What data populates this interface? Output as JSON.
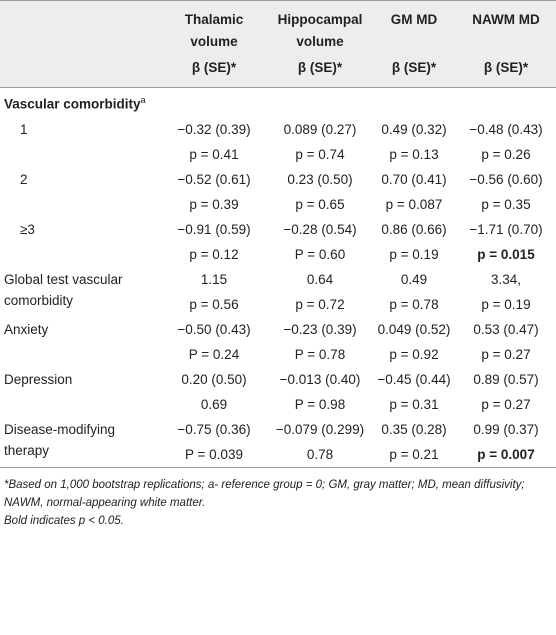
{
  "header": {
    "columns": [
      "Thalamic volume",
      "Hippocampal volume",
      "GM MD",
      "NAWM MD"
    ],
    "subheader": "β (SE)*"
  },
  "table": {
    "rows": [
      {
        "label": "Vascular comorbidity",
        "sup": "a",
        "bold": true,
        "cells": []
      },
      {
        "label": "1",
        "indent": true,
        "cells": [
          {
            "text": "−0.32 (0.39)"
          },
          {
            "text": "0.089 (0.27)"
          },
          {
            "text": "0.49 (0.32)"
          },
          {
            "text": "−0.48 (0.43)"
          }
        ]
      },
      {
        "cells": [
          {
            "text": "p = 0.41"
          },
          {
            "text": "p = 0.74"
          },
          {
            "text": "p = 0.13"
          },
          {
            "text": "p = 0.26"
          }
        ]
      },
      {
        "label": "2",
        "indent": true,
        "cells": [
          {
            "text": "−0.52 (0.61)"
          },
          {
            "text": "0.23 (0.50)"
          },
          {
            "text": "0.70 (0.41)"
          },
          {
            "text": "−0.56 (0.60)"
          }
        ]
      },
      {
        "cells": [
          {
            "text": "p = 0.39"
          },
          {
            "text": "p = 0.65"
          },
          {
            "text": "p = 0.087"
          },
          {
            "text": "p = 0.35"
          }
        ]
      },
      {
        "label": "≥3",
        "indent": true,
        "cells": [
          {
            "text": "−0.91 (0.59)"
          },
          {
            "text": "−0.28 (0.54)"
          },
          {
            "text": "0.86 (0.66)"
          },
          {
            "text": "−1.71 (0.70)"
          }
        ]
      },
      {
        "cells": [
          {
            "text": "p = 0.12"
          },
          {
            "text": "P = 0.60"
          },
          {
            "text": "p = 0.19"
          },
          {
            "text": "p = 0.015",
            "bold": true
          }
        ]
      },
      {
        "label": "Global test vascular comorbidity",
        "cells": [
          {
            "text": "1.15"
          },
          {
            "text": "0.64"
          },
          {
            "text": "0.49"
          },
          {
            "text": "3.34,"
          }
        ]
      },
      {
        "cells": [
          {
            "text": "p = 0.56"
          },
          {
            "text": "p = 0.72"
          },
          {
            "text": "p = 0.78"
          },
          {
            "text": "p = 0.19"
          }
        ]
      },
      {
        "label": "Anxiety",
        "cells": [
          {
            "text": "−0.50 (0.43)"
          },
          {
            "text": "−0.23 (0.39)"
          },
          {
            "text": "0.049 (0.52)"
          },
          {
            "text": "0.53 (0.47)"
          }
        ]
      },
      {
        "cells": [
          {
            "text": "P = 0.24"
          },
          {
            "text": "P = 0.78"
          },
          {
            "text": "p = 0.92"
          },
          {
            "text": "p = 0.27"
          }
        ]
      },
      {
        "label": "Depression",
        "cells": [
          {
            "text": "0.20 (0.50)"
          },
          {
            "text": "−0.013 (0.40)"
          },
          {
            "text": "−0.45 (0.44)"
          },
          {
            "text": "0.89 (0.57)"
          }
        ]
      },
      {
        "cells": [
          {
            "text": "0.69"
          },
          {
            "text": "P = 0.98"
          },
          {
            "text": "p = 0.31"
          },
          {
            "text": "p = 0.27"
          }
        ]
      },
      {
        "label": "Disease-modifying therapy",
        "cells": [
          {
            "text": "−0.75 (0.36)"
          },
          {
            "text": "−0.079 (0.299)"
          },
          {
            "text": "0.35 (0.28)"
          },
          {
            "text": "0.99 (0.37)"
          }
        ]
      },
      {
        "cells": [
          {
            "text": "P = 0.039"
          },
          {
            "text": "0.78"
          },
          {
            "text": "p = 0.21"
          },
          {
            "text": "p = 0.007",
            "bold": true
          }
        ]
      }
    ]
  },
  "notes": [
    "*Based on 1,000 bootstrap replications; a- reference group = 0; GM, gray matter; MD, mean diffusivity; NAWM, normal-appearing white matter.",
    "Bold indicates p < 0.05."
  ]
}
